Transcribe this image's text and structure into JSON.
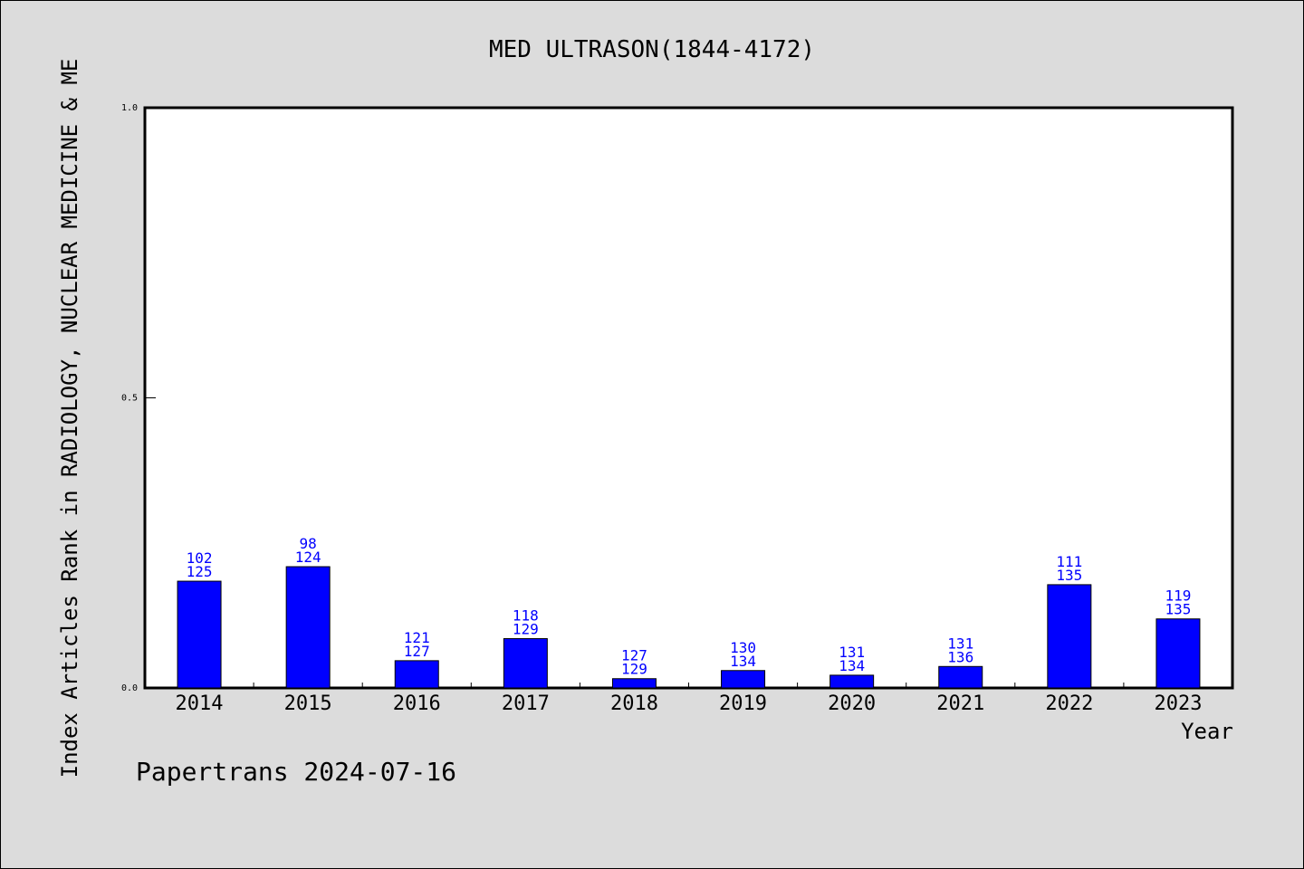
{
  "chart_data": {
    "type": "bar",
    "title": "MED ULTRASON(1844-4172)",
    "xlabel": "Year",
    "ylabel": "Index Articles Rank in RADIOLOGY, NUCLEAR MEDICINE & ME",
    "ylim": [
      0,
      1.0
    ],
    "yticks": [
      "0.0",
      "0.5",
      "1.0"
    ],
    "ytick_values": [
      0,
      0.5,
      1.0
    ],
    "categories": [
      "2014",
      "2015",
      "2016",
      "2017",
      "2018",
      "2019",
      "2020",
      "2021",
      "2022",
      "2023"
    ],
    "values": [
      0.184,
      0.209,
      0.047,
      0.085,
      0.016,
      0.03,
      0.022,
      0.037,
      0.178,
      0.119
    ],
    "labels_top": [
      "102",
      "98",
      "121",
      "118",
      "127",
      "130",
      "131",
      "131",
      "111",
      "119"
    ],
    "labels_bottom": [
      "125",
      "124",
      "127",
      "129",
      "129",
      "134",
      "134",
      "136",
      "135",
      "135"
    ],
    "bar_color": "#0000ff",
    "grid": false
  },
  "footer": {
    "credit": "Papertrans 2024-07-16"
  }
}
